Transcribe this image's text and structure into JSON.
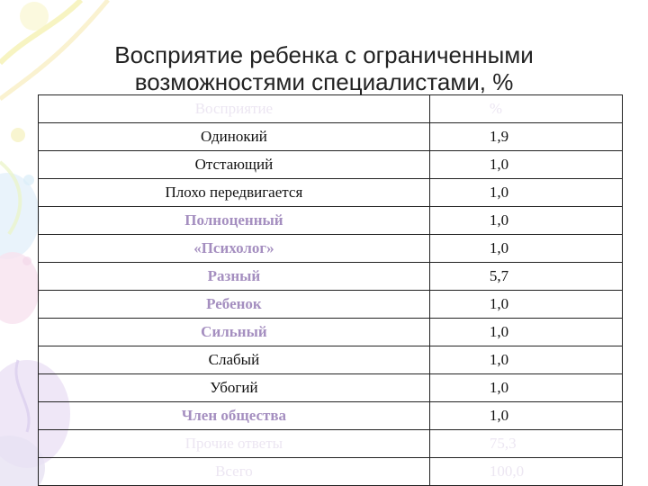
{
  "title": "Восприятие ребенка с ограниченными возможностями специалистами, %",
  "table": {
    "rows": [
      {
        "label": "Восприятие",
        "value": "%",
        "style": "faint"
      },
      {
        "label": "Одинокий",
        "value": "1,9",
        "style": "normal"
      },
      {
        "label": "Отстающий",
        "value": "1,0",
        "style": "normal"
      },
      {
        "label": "Плохо передвигается",
        "value": "1,0",
        "style": "normal"
      },
      {
        "label": "Полноценный",
        "value": "1,0",
        "style": "purple"
      },
      {
        "label": "«Психолог»",
        "value": "1,0",
        "style": "purple"
      },
      {
        "label": "Разный",
        "value": "5,7",
        "style": "purple"
      },
      {
        "label": "Ребенок",
        "value": "1,0",
        "style": "purple"
      },
      {
        "label": "Сильный",
        "value": "1,0",
        "style": "purple"
      },
      {
        "label": "Слабый",
        "value": "1,0",
        "style": "normal"
      },
      {
        "label": "Убогий",
        "value": "1,0",
        "style": "normal"
      },
      {
        "label": "Член общества",
        "value": "1,0",
        "style": "purple"
      },
      {
        "label": "Прочие ответы",
        "value": "75,3",
        "style": "faint"
      },
      {
        "label": "Всего",
        "value": "100,0",
        "style": "faint"
      }
    ]
  },
  "colors": {
    "accent_text": "#a58fc0",
    "faint_text": "#ece6f2",
    "border": "#222222"
  }
}
